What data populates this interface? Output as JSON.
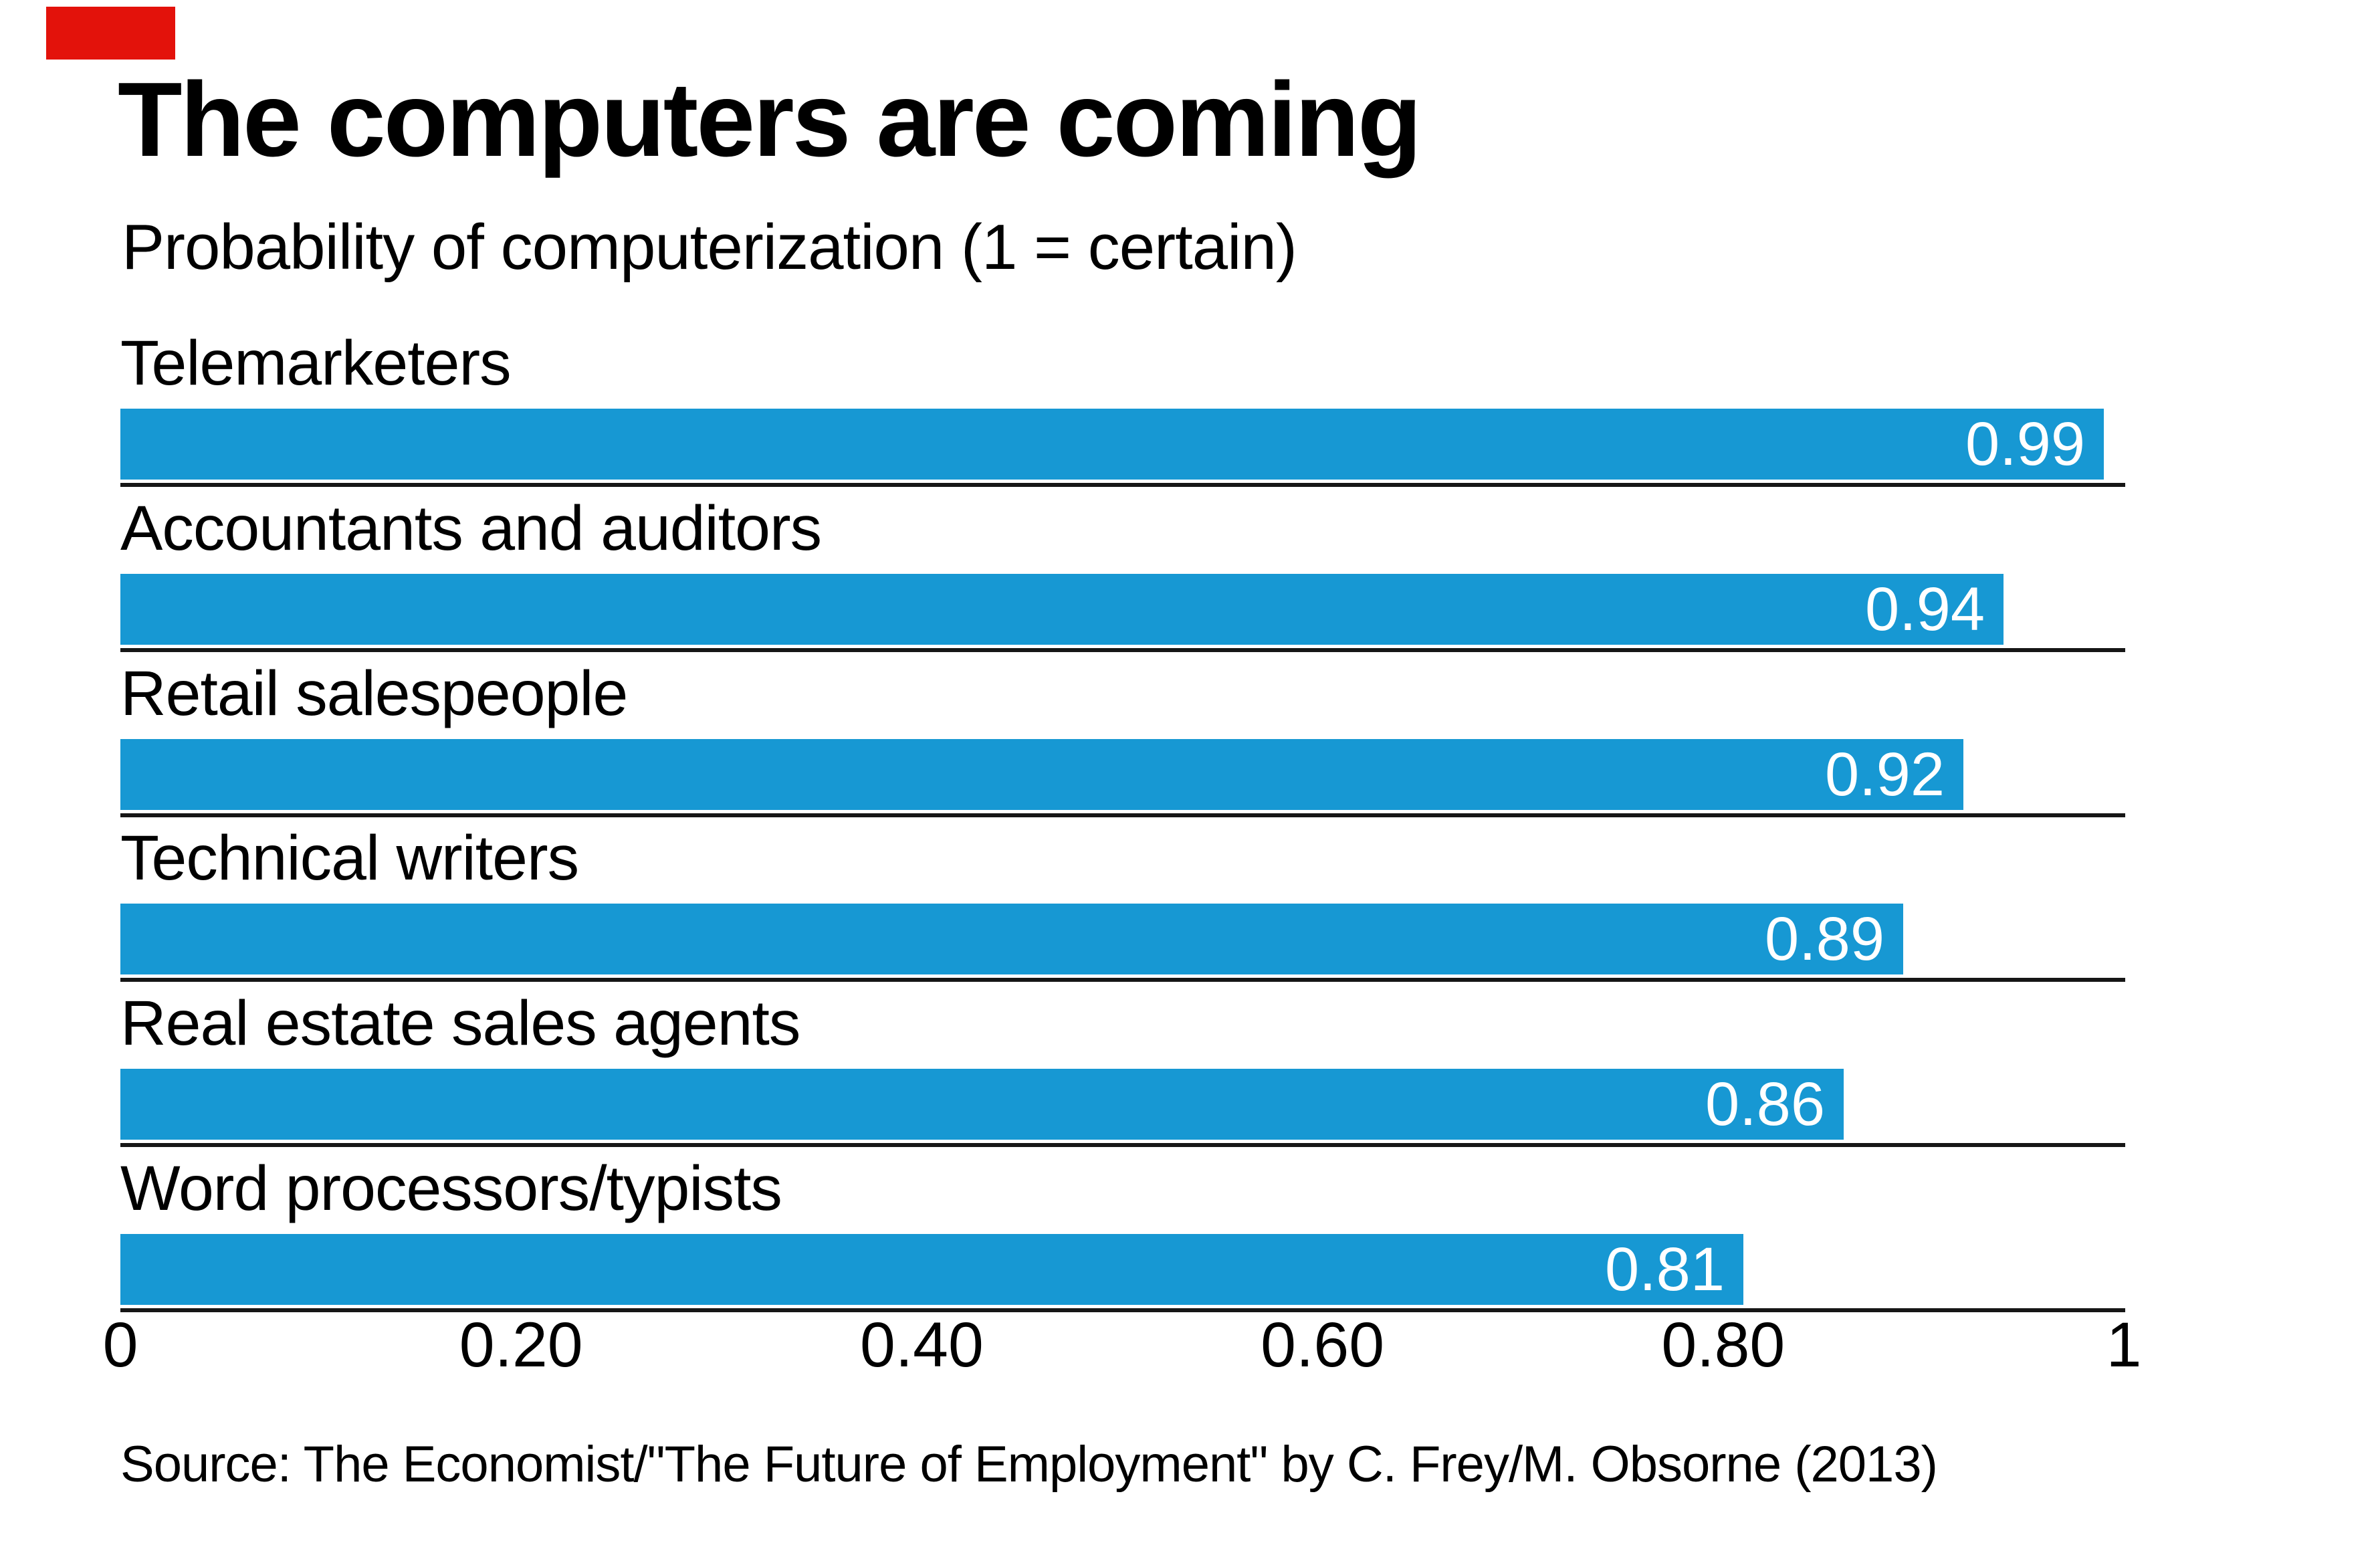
{
  "brand": {
    "red_tab_color": "#e3120b"
  },
  "header": {
    "title": "The computers are coming",
    "subtitle": "Probability of computerization (1 = certain)"
  },
  "source_line": "Source: The Economist/\"The Future of Employment\" by C. Frey/M. Obsorne (2013)",
  "chart_data": {
    "type": "bar",
    "orientation": "horizontal",
    "title": "The computers are coming",
    "subtitle": "Probability of computerization (1 = certain)",
    "categories": [
      "Telemarketers",
      "Accountants and auditors",
      "Retail salespeople",
      "Technical writers",
      "Real estate sales agents",
      "Word processors/typists"
    ],
    "values": [
      0.99,
      0.94,
      0.92,
      0.89,
      0.86,
      0.81
    ],
    "value_labels": [
      "0.99",
      "0.94",
      "0.92",
      "0.89",
      "0.86",
      "0.81"
    ],
    "xlabel": "",
    "ylabel": "",
    "xlim": [
      0,
      1
    ],
    "x_ticks": [
      {
        "value": 0,
        "label": "0"
      },
      {
        "value": 0.2,
        "label": "0.20"
      },
      {
        "value": 0.4,
        "label": "0.40"
      },
      {
        "value": 0.6,
        "label": "0.60"
      },
      {
        "value": 0.8,
        "label": "0.80"
      },
      {
        "value": 1,
        "label": "1"
      }
    ],
    "bar_color": "#1798d3",
    "value_text_color": "#ffffff",
    "divider_color": "#161616",
    "grid": false,
    "legend": null
  }
}
